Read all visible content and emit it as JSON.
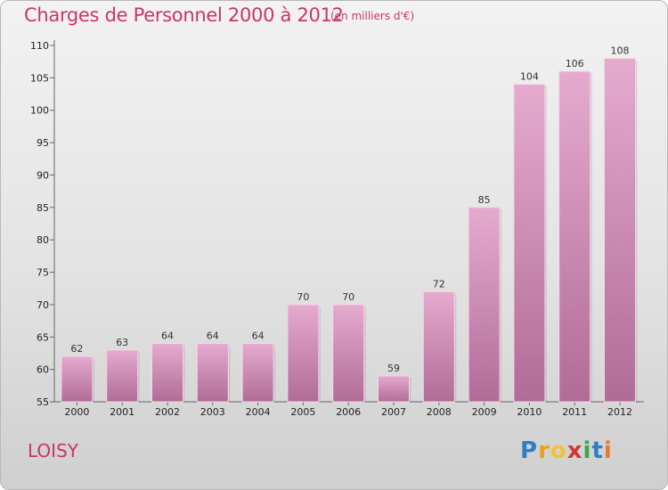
{
  "header": {
    "title": "Charges de Personnel 2000 à 2012",
    "subtitle": "(en milliers d'€)"
  },
  "footer": {
    "commune": "LOISY",
    "logo_text": "Proxiti"
  },
  "colors": {
    "title": "#c8356e",
    "bar_top": "#e6aacf",
    "bar_bottom": "#b06c97"
  },
  "chart_data": {
    "type": "bar",
    "title": "Charges de Personnel 2000 à 2012",
    "subtitle": "(en milliers d'€)",
    "xlabel": "",
    "ylabel": "",
    "categories": [
      "2000",
      "2001",
      "2002",
      "2003",
      "2004",
      "2005",
      "2006",
      "2007",
      "2008",
      "2009",
      "2010",
      "2011",
      "2012"
    ],
    "values": [
      62,
      63,
      64,
      64,
      64,
      70,
      70,
      59,
      72,
      85,
      104,
      106,
      108
    ],
    "ylim": [
      55,
      110
    ],
    "yticks": [
      55,
      60,
      65,
      70,
      75,
      80,
      85,
      90,
      95,
      100,
      105,
      110
    ],
    "grid": false,
    "legend": "none"
  }
}
